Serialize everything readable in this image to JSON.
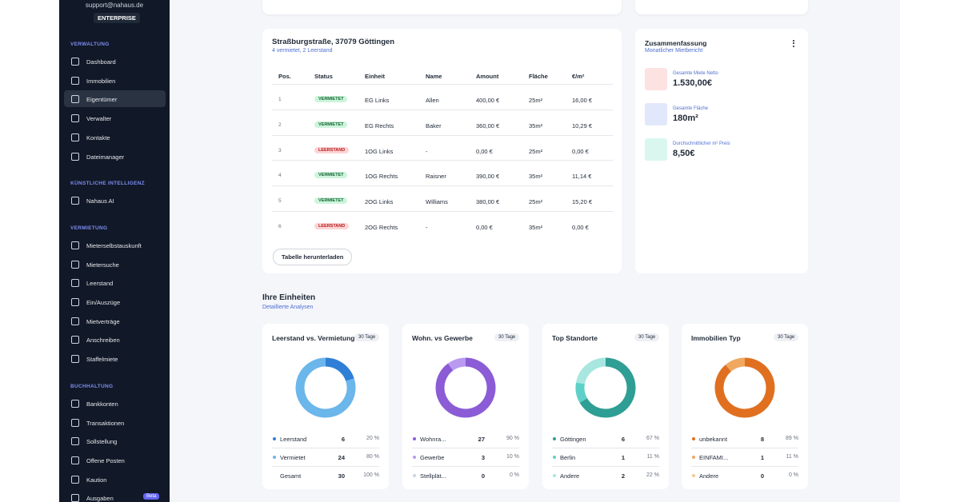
{
  "sidebar": {
    "email": "support@nahaus.de",
    "plan": "ENTERPRISE",
    "sections": [
      {
        "title": "VERWALTUNG",
        "items": [
          {
            "label": "Dashboard"
          },
          {
            "label": "Immobilien"
          },
          {
            "label": "Eigentümer",
            "active": true
          },
          {
            "label": "Verwalter"
          },
          {
            "label": "Kontakte"
          },
          {
            "label": "Dateimanager"
          }
        ]
      },
      {
        "title": "KÜNSTLICHE INTELLIGENZ",
        "items": [
          {
            "label": "Nahaus AI"
          }
        ]
      },
      {
        "title": "VERMIETUNG",
        "items": [
          {
            "label": "Mieterselbstauskunft"
          },
          {
            "label": "Mietersuche"
          },
          {
            "label": "Leerstand"
          },
          {
            "label": "Ein/Auszüge"
          },
          {
            "label": "Mietverträge"
          },
          {
            "label": "Anschreiben"
          },
          {
            "label": "Staffelmiete"
          }
        ]
      },
      {
        "title": "BUCHHALTUNG",
        "items": [
          {
            "label": "Bankkonten"
          },
          {
            "label": "Transaktionen"
          },
          {
            "label": "Sollstellung"
          },
          {
            "label": "Offene Posten"
          },
          {
            "label": "Kaution"
          },
          {
            "label": "Ausgaben",
            "badge": "Beta"
          }
        ]
      }
    ]
  },
  "property": {
    "title": "Straßburgstraße, 37079 Göttingen",
    "subtitle": "4 vermietet, 2 Leerstand",
    "table": {
      "headers": [
        "Pos.",
        "Status",
        "Einheit",
        "Name",
        "Amount",
        "Fläche",
        "€/m²"
      ],
      "rows": [
        {
          "cells": [
            "1",
            "VERMIETET",
            "EG Links",
            "Allen",
            "400,00 €",
            "25m²",
            "16,00 €"
          ],
          "badge_color": "green"
        },
        {
          "cells": [
            "2",
            "VERMIETET",
            "EG Rechts",
            "Baker",
            "360,00 €",
            "35m²",
            "10,29 €"
          ],
          "badge_color": "green"
        },
        {
          "cells": [
            "3",
            "LEERSTAND",
            "1OG Links",
            "-",
            "0,00 €",
            "25m²",
            "0,00 €"
          ],
          "badge_color": "red"
        },
        {
          "cells": [
            "4",
            "VERMIETET",
            "1OG Rechts",
            "Raisner",
            "390,00 €",
            "35m²",
            "11,14 €"
          ],
          "badge_color": "green"
        },
        {
          "cells": [
            "5",
            "VERMIETET",
            "2OG Links",
            "Williams",
            "380,00 €",
            "25m²",
            "15,20 €"
          ],
          "badge_color": "green"
        },
        {
          "cells": [
            "6",
            "LEERSTAND",
            "2OG Rechts",
            "-",
            "0,00 €",
            "35m²",
            "0,00 €"
          ],
          "badge_color": "red"
        }
      ]
    },
    "button": "Tabelle herunterladen"
  },
  "summary": {
    "title": "Zusammenfassung",
    "subtitle": "Monatlicher Mietbericht",
    "items": [
      {
        "label": "Gesamte Miete Netto",
        "value": "1.530,00€",
        "color": "#fde2e2"
      },
      {
        "label": "Gesamte Fläche",
        "value": "180m²",
        "color": "#e2e8fb"
      },
      {
        "label": "Durchschnittlicher m² Preis",
        "value": "8,50€",
        "color": "#d9f7ef"
      }
    ]
  },
  "units": {
    "title": "Ihre Einheiten",
    "subtitle": "Detaillierte Analysen",
    "cards": [
      {
        "title": "Leerstand vs. Vermietung",
        "badge": "30 Tage",
        "rows": [
          {
            "label": "Leerstand",
            "count": 6,
            "pct": "20 %",
            "color": "#2f7fd6"
          },
          {
            "label": "Vermietet",
            "count": 24,
            "pct": "80 %",
            "color": "#6bb6ea"
          },
          {
            "label": "Gesamt",
            "count": 30,
            "pct": "100 %"
          }
        ]
      },
      {
        "title": "Wohn. vs Gewerbe",
        "badge": "30 Tage",
        "rows": [
          {
            "label": "Wohnra...",
            "count": 27,
            "pct": "90 %",
            "color": "#8b5cd6"
          },
          {
            "label": "Gewerbe",
            "count": 3,
            "pct": "10 %",
            "color": "#b99af0"
          },
          {
            "label": "Stellplät...",
            "count": 0,
            "pct": "0 %",
            "color": "#cbd5e1"
          }
        ]
      },
      {
        "title": "Top Standorte",
        "badge": "30 Tage",
        "rows": [
          {
            "label": "Göttingen",
            "count": 6,
            "pct": "67 %",
            "color": "#2f9e94"
          },
          {
            "label": "Berlin",
            "count": 1,
            "pct": "11 %",
            "color": "#5fd0c8"
          },
          {
            "label": "Andere",
            "count": 2,
            "pct": "22 %",
            "color": "#a8e6e0"
          }
        ]
      },
      {
        "title": "Immobilien Typ",
        "badge": "30 Tage",
        "rows": [
          {
            "label": "unbekannt",
            "count": 8,
            "pct": "89 %",
            "color": "#e07020"
          },
          {
            "label": "EINFAMI...",
            "count": 1,
            "pct": "11 %",
            "color": "#f0a860"
          },
          {
            "label": "Andere",
            "count": 0,
            "pct": "0 %",
            "color": "#f5c890"
          }
        ]
      }
    ]
  }
}
